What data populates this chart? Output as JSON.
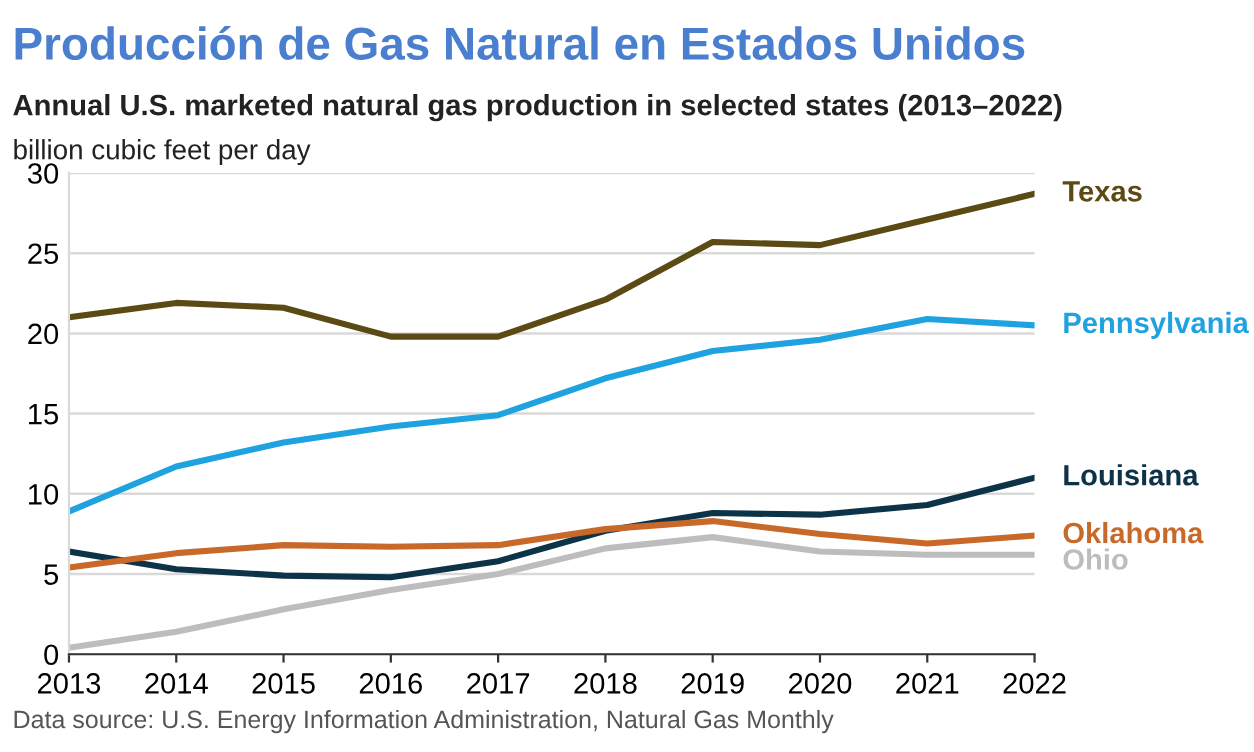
{
  "chart_data": {
    "type": "line",
    "title": "Producción de Gas Natural en Estados Unidos",
    "subtitle": "Annual U.S. marketed natural gas production in selected states (2013–2022)",
    "ylabel": "billion cubic feet per day",
    "x": [
      2013,
      2014,
      2015,
      2016,
      2017,
      2018,
      2019,
      2020,
      2021,
      2022
    ],
    "series": [
      {
        "name": "Texas",
        "color": "#5c4a14",
        "values": [
          21.0,
          21.9,
          21.6,
          19.8,
          19.8,
          22.1,
          25.7,
          25.5,
          27.1,
          28.7
        ]
      },
      {
        "name": "Pennsylvania",
        "color": "#1fa2e0",
        "values": [
          8.9,
          11.7,
          13.2,
          14.2,
          14.9,
          17.2,
          18.9,
          19.6,
          20.9,
          20.5
        ]
      },
      {
        "name": "Louisiana",
        "color": "#0d3349",
        "values": [
          6.4,
          5.3,
          4.9,
          4.8,
          5.8,
          7.7,
          8.8,
          8.7,
          9.3,
          11.0
        ]
      },
      {
        "name": "Oklahoma",
        "color": "#c8692a",
        "values": [
          5.4,
          6.3,
          6.8,
          6.7,
          6.8,
          7.8,
          8.3,
          7.5,
          6.9,
          7.4
        ]
      },
      {
        "name": "Ohio",
        "color": "#bdbdbd",
        "values": [
          0.4,
          1.4,
          2.8,
          4.0,
          5.0,
          6.6,
          7.3,
          6.4,
          6.2,
          6.2
        ]
      }
    ],
    "xlim": [
      2013,
      2022
    ],
    "xticks": [
      2013,
      2014,
      2015,
      2016,
      2017,
      2018,
      2019,
      2020,
      2021,
      2022
    ],
    "ylim": [
      0,
      30
    ],
    "yticks": [
      0,
      5,
      10,
      15,
      20,
      25,
      30
    ],
    "grid": "y",
    "legend": false,
    "marker": "none",
    "line_style": "solid",
    "annotations": [
      "Data source: U.S. Energy Information Administration, Natural Gas Monthly"
    ]
  }
}
